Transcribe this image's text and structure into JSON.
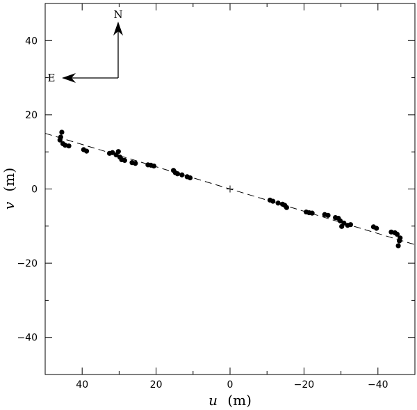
{
  "chart_data": {
    "type": "scatter",
    "title": "",
    "xlabel_var": "u",
    "xlabel_unit": "(m)",
    "ylabel_var": "v",
    "ylabel_unit": "(m)",
    "xlim": [
      50,
      -50
    ],
    "ylim": [
      -50,
      50
    ],
    "x_ticks": [
      40,
      20,
      0,
      -20,
      -40
    ],
    "y_ticks": [
      40,
      20,
      0,
      -20,
      -40
    ],
    "x_tick_labels": [
      "40",
      "20",
      "0",
      "−20",
      "−40"
    ],
    "y_tick_labels": [
      "40",
      "20",
      "0",
      "−20",
      "−40"
    ],
    "grid": false,
    "legend": "none",
    "fit_line": {
      "style": "dashed",
      "slope": 0.3,
      "x": [
        50,
        -50
      ]
    },
    "origin_marker": "plus",
    "compass": {
      "north_label": "N",
      "east_label": "E"
    },
    "series": [
      {
        "marker": "filled-circle",
        "color": "#000000",
        "points": [
          [
            45.5,
            15.3
          ],
          [
            45.8,
            14.0
          ],
          [
            46.0,
            13.2
          ],
          [
            45.2,
            12.2
          ],
          [
            44.6,
            11.8
          ],
          [
            43.6,
            11.6
          ],
          [
            39.6,
            10.6
          ],
          [
            38.8,
            10.2
          ],
          [
            32.6,
            9.6
          ],
          [
            31.8,
            9.8
          ],
          [
            30.8,
            9.2
          ],
          [
            30.2,
            10.1
          ],
          [
            29.8,
            8.6
          ],
          [
            29.3,
            7.9
          ],
          [
            28.5,
            7.7
          ],
          [
            26.5,
            7.1
          ],
          [
            25.6,
            6.9
          ],
          [
            22.2,
            6.5
          ],
          [
            21.4,
            6.4
          ],
          [
            20.6,
            6.2
          ],
          [
            15.3,
            5.0
          ],
          [
            14.8,
            4.4
          ],
          [
            14.2,
            4.1
          ],
          [
            13.0,
            3.8
          ],
          [
            11.6,
            3.3
          ],
          [
            10.8,
            3.0
          ],
          [
            -10.8,
            -3.0
          ],
          [
            -11.6,
            -3.3
          ],
          [
            -13.0,
            -3.8
          ],
          [
            -14.2,
            -4.1
          ],
          [
            -14.8,
            -4.4
          ],
          [
            -15.3,
            -5.0
          ],
          [
            -20.6,
            -6.2
          ],
          [
            -21.4,
            -6.4
          ],
          [
            -22.2,
            -6.5
          ],
          [
            -25.6,
            -6.9
          ],
          [
            -26.5,
            -7.1
          ],
          [
            -28.5,
            -7.7
          ],
          [
            -29.3,
            -7.9
          ],
          [
            -29.8,
            -8.6
          ],
          [
            -30.2,
            -10.1
          ],
          [
            -30.8,
            -9.2
          ],
          [
            -31.8,
            -9.8
          ],
          [
            -32.6,
            -9.6
          ],
          [
            -38.8,
            -10.2
          ],
          [
            -39.6,
            -10.6
          ],
          [
            -43.6,
            -11.6
          ],
          [
            -44.6,
            -11.8
          ],
          [
            -45.2,
            -12.2
          ],
          [
            -46.0,
            -13.2
          ],
          [
            -45.8,
            -14.0
          ],
          [
            -45.5,
            -15.3
          ]
        ]
      }
    ]
  }
}
